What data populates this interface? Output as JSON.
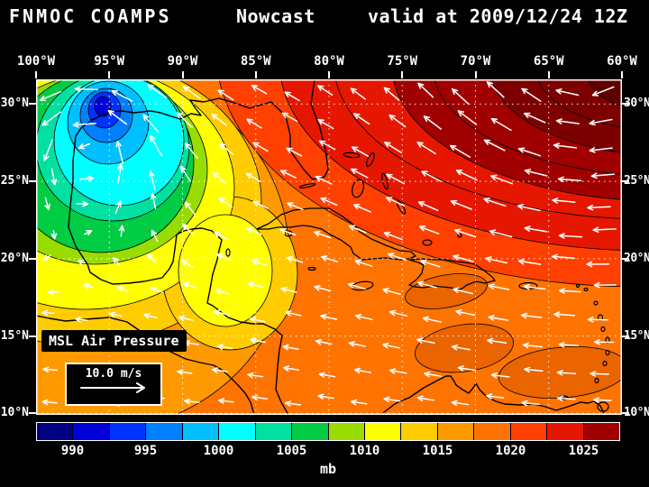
{
  "header": {
    "model": "FNMOC COAMPS",
    "product": "Nowcast",
    "valid": "valid at 2009/12/24 12Z"
  },
  "map": {
    "field_label": "MSL Air Pressure",
    "wind_scale_label": "10.0 m/s"
  },
  "colorbar": {
    "unit": "mb"
  },
  "chart_data": {
    "type": "heatmap",
    "title": "FNMOC COAMPS Nowcast valid at 2009/12/24 12Z",
    "field": "MSL Air Pressure (mb) with surface wind vectors",
    "region": "Gulf of Mexico / Caribbean",
    "lon_range": [
      -100,
      -60
    ],
    "lat_range": [
      9.9,
      31.6
    ],
    "grid_step_deg": 5,
    "lon_ticks": [
      {
        "v": -100,
        "label": "100°W"
      },
      {
        "v": -95,
        "label": "95°W"
      },
      {
        "v": -90,
        "label": "90°W"
      },
      {
        "v": -85,
        "label": "85°W"
      },
      {
        "v": -80,
        "label": "80°W"
      },
      {
        "v": -75,
        "label": "75°W"
      },
      {
        "v": -70,
        "label": "70°W"
      },
      {
        "v": -65,
        "label": "65°W"
      },
      {
        "v": -60,
        "label": "60°W"
      }
    ],
    "lat_ticks": [
      {
        "v": 30,
        "label": "30°N"
      },
      {
        "v": 25,
        "label": "25°N"
      },
      {
        "v": 20,
        "label": "20°N"
      },
      {
        "v": 15,
        "label": "15°N"
      },
      {
        "v": 10,
        "label": "10°N"
      }
    ],
    "colorbar_min_mb": 987.5,
    "colorbar_max_mb": 1027.5,
    "colorbar_tick_values": [
      990,
      995,
      1000,
      1005,
      1010,
      1015,
      1020,
      1025
    ],
    "colorbar_colors": [
      "#000080",
      "#0000d9",
      "#0033ff",
      "#0080ff",
      "#00bfff",
      "#00ffff",
      "#00e0a0",
      "#00cc44",
      "#99dd00",
      "#ffff00",
      "#ffcc00",
      "#ff9900",
      "#ff7300",
      "#ff4000",
      "#e61700",
      "#a00000"
    ],
    "over_colors": [
      "#7d0000",
      "#5f0000"
    ],
    "patch_color": "#ea6400",
    "unit": "mb",
    "wind_reference_ms": 10.0,
    "pressure_centers": [
      {
        "type": "low",
        "lon": -96.5,
        "lat": 27.5,
        "value_mb": 988,
        "strength": 11,
        "radius_deg": 8
      },
      {
        "type": "high",
        "lon": -63.0,
        "lat": 33.0,
        "value_mb": 1026,
        "strength": 8,
        "radius_deg": 18
      }
    ]
  }
}
